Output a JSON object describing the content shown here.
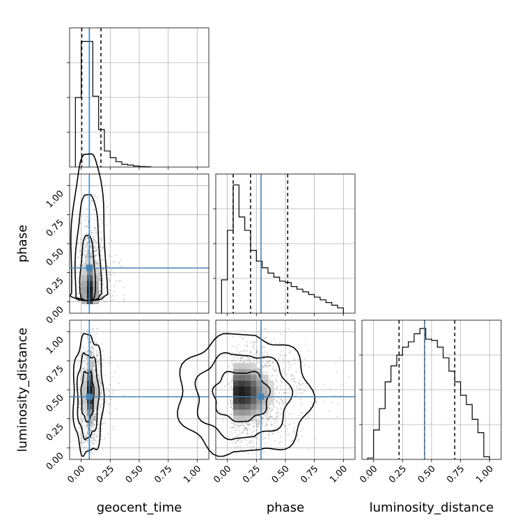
{
  "chart_data": {
    "type": "corner",
    "parameters": [
      "geocent_time",
      "phase",
      "luminosity_distance"
    ],
    "axis_range": [
      -0.1,
      1.1
    ],
    "tick_values": [
      0.0,
      0.25,
      0.5,
      0.75,
      1.0
    ],
    "tick_labels": [
      "0.00",
      "0.25",
      "0.50",
      "0.75",
      "1.00"
    ],
    "grid": true,
    "truth_color": "#4682b4",
    "truths": {
      "geocent_time": 0.07,
      "phase": 0.29,
      "luminosity_distance": 0.44
    },
    "quantiles": {
      "geocent_time": [
        0.005,
        0.07,
        0.17
      ],
      "phase": [
        0.05,
        0.2,
        0.52
      ],
      "luminosity_distance": [
        0.22,
        0.44,
        0.7
      ]
    },
    "histograms": {
      "geocent_time": {
        "bin_edges": [
          -0.05,
          0.0,
          0.05,
          0.1,
          0.15,
          0.2,
          0.25,
          0.3,
          0.35,
          0.4,
          0.45,
          0.5,
          0.55,
          0.6
        ],
        "counts": [
          0.52,
          0.94,
          0.94,
          0.53,
          0.28,
          0.12,
          0.07,
          0.04,
          0.02,
          0.015,
          0.008,
          0.004,
          0.002
        ]
      },
      "phase": {
        "bin_edges": [
          -0.05,
          0.0,
          0.05,
          0.1,
          0.15,
          0.2,
          0.25,
          0.3,
          0.35,
          0.4,
          0.45,
          0.5,
          0.55,
          0.6,
          0.65,
          0.7,
          0.75,
          0.8,
          0.85,
          0.9,
          0.95,
          1.0
        ],
        "counts": [
          0.25,
          0.62,
          0.96,
          0.72,
          0.62,
          0.47,
          0.39,
          0.34,
          0.3,
          0.27,
          0.24,
          0.23,
          0.2,
          0.18,
          0.16,
          0.14,
          0.12,
          0.1,
          0.08,
          0.06,
          0.04
        ]
      },
      "luminosity_distance": {
        "bin_edges": [
          -0.05,
          0.0,
          0.05,
          0.1,
          0.15,
          0.2,
          0.25,
          0.3,
          0.35,
          0.4,
          0.45,
          0.5,
          0.55,
          0.6,
          0.65,
          0.7,
          0.75,
          0.8,
          0.85,
          0.9,
          0.95,
          1.0
        ],
        "counts": [
          0.01,
          0.22,
          0.38,
          0.58,
          0.7,
          0.78,
          0.84,
          0.88,
          0.94,
          0.98,
          0.9,
          0.89,
          0.84,
          0.76,
          0.66,
          0.58,
          0.48,
          0.41,
          0.3,
          0.2,
          0.02
        ]
      }
    },
    "pairs": [
      {
        "x": "geocent_time",
        "y": "phase",
        "mode": [
          0.05,
          0.07
        ],
        "spread": [
          0.06,
          0.22
        ]
      },
      {
        "x": "geocent_time",
        "y": "luminosity_distance",
        "mode": [
          0.05,
          0.45
        ],
        "spread": [
          0.05,
          0.22
        ]
      },
      {
        "x": "phase",
        "y": "luminosity_distance",
        "mode": [
          0.1,
          0.45
        ],
        "spread": [
          0.22,
          0.22
        ]
      }
    ]
  }
}
